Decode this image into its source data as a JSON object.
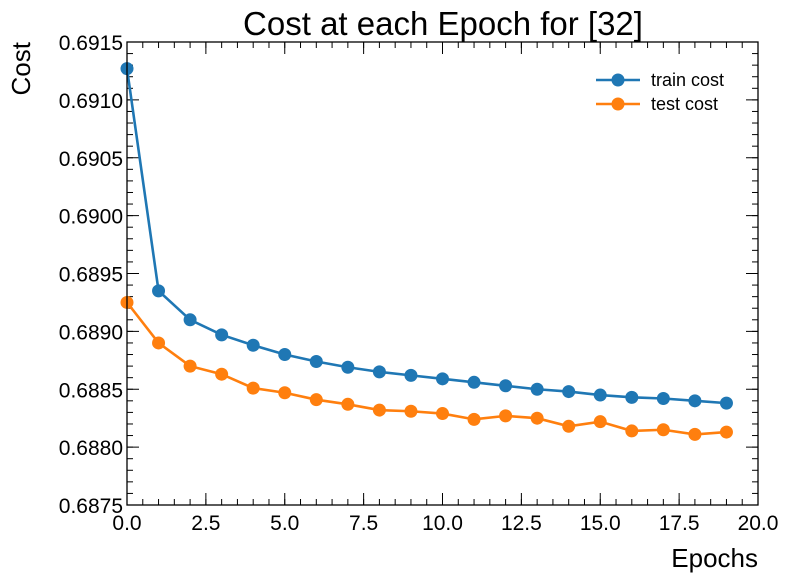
{
  "chart_data": {
    "type": "line",
    "title": "Cost at each Epoch for [32]",
    "xlabel": "Epochs",
    "ylabel": "Cost",
    "xlim": [
      0,
      20
    ],
    "ylim": [
      0.6875,
      0.6915
    ],
    "xticks": [
      0,
      2.5,
      5,
      7.5,
      10,
      12.5,
      15,
      17.5,
      20
    ],
    "xtick_labels": [
      "0.0",
      "2.5",
      "5.0",
      "7.5",
      "10.0",
      "12.5",
      "15.0",
      "17.5",
      "20.0"
    ],
    "yticks": [
      0.6875,
      0.688,
      0.6885,
      0.689,
      0.6895,
      0.69,
      0.6905,
      0.691,
      0.6915
    ],
    "ytick_labels": [
      "0.6875",
      "0.6880",
      "0.6885",
      "0.6890",
      "0.6895",
      "0.6900",
      "0.6905",
      "0.6910",
      "0.6915"
    ],
    "grid": false,
    "legend_position": "top-right",
    "x": [
      0,
      1,
      2,
      3,
      4,
      5,
      6,
      7,
      8,
      9,
      10,
      11,
      12,
      13,
      14,
      15,
      16,
      17,
      18,
      19
    ],
    "series": [
      {
        "name": "train cost",
        "color": "#1f77b4",
        "values": [
          0.69127,
          0.68935,
          0.6891,
          0.68897,
          0.68888,
          0.6888,
          0.68874,
          0.68869,
          0.68865,
          0.68862,
          0.68859,
          0.68856,
          0.68853,
          0.6885,
          0.68848,
          0.68845,
          0.68843,
          0.68842,
          0.6884,
          0.68838
        ]
      },
      {
        "name": "test cost",
        "color": "#ff7f0e",
        "values": [
          0.68925,
          0.6889,
          0.6887,
          0.68863,
          0.68851,
          0.68847,
          0.68841,
          0.68837,
          0.68832,
          0.68831,
          0.68829,
          0.68824,
          0.68827,
          0.68825,
          0.68818,
          0.68822,
          0.68814,
          0.68815,
          0.68811,
          0.68813
        ]
      }
    ]
  }
}
